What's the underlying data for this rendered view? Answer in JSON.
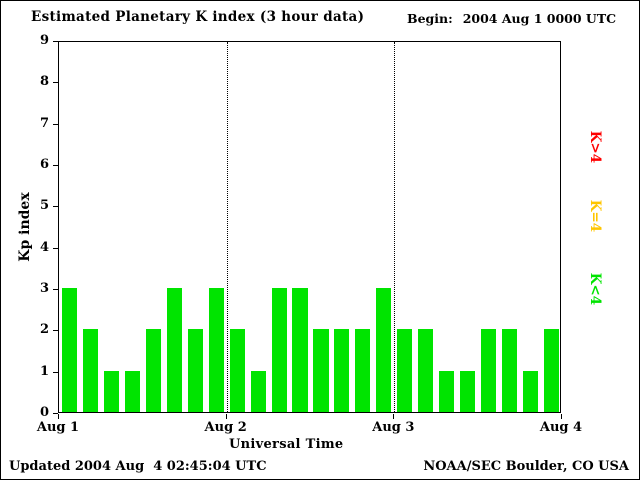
{
  "title": "Estimated Planetary K index (3 hour data)",
  "begin": {
    "label": "Begin:",
    "value": "2004 Aug 1 0000 UTC"
  },
  "footer": {
    "updated": "Updated 2004 Aug  4 02:45:04 UTC",
    "org": "NOAA/SEC Boulder, CO USA"
  },
  "legend": [
    {
      "label": "K>4",
      "color": "#ff0000"
    },
    {
      "label": "K=4",
      "color": "#ffc600"
    },
    {
      "label": "K<4",
      "color": "#00e400"
    }
  ],
  "chart_data": {
    "type": "bar",
    "title": "Estimated Planetary K index (3 hour data)",
    "xlabel": "Universal Time",
    "ylabel": "Kp index",
    "ylim": [
      0,
      9
    ],
    "yticks": [
      0,
      1,
      2,
      3,
      4,
      5,
      6,
      7,
      8,
      9
    ],
    "xticks": [
      "Aug 1",
      "Aug 2",
      "Aug 3",
      "Aug 4"
    ],
    "bar_color": "#00e400",
    "interval_hours": 3,
    "day_separators": true,
    "values": [
      3,
      2,
      1,
      1,
      2,
      3,
      2,
      3,
      2,
      1,
      3,
      3,
      2,
      2,
      2,
      3,
      2,
      2,
      1,
      1,
      2,
      2,
      1,
      2
    ]
  }
}
